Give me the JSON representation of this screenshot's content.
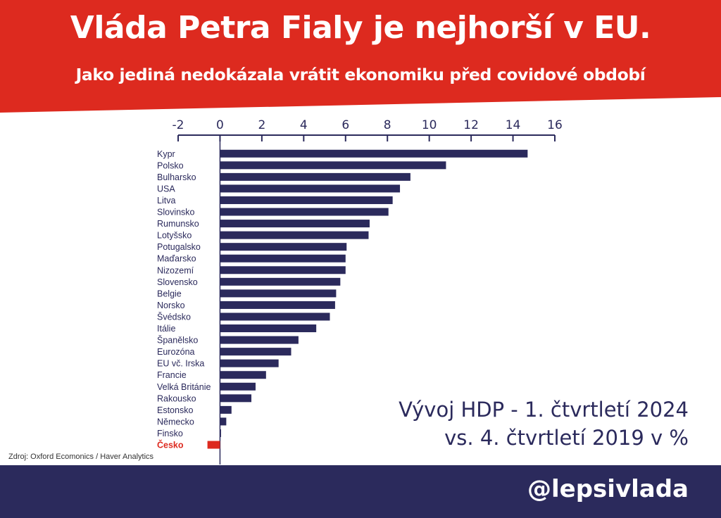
{
  "header": {
    "title": "Vláda Petra Fialy je nejhorší v EU.",
    "subtitle": "Jako jediná nedokázala vrátit ekonomiku před covidové období"
  },
  "caption": {
    "line1": "Vývoj HDP - 1. čtvrtletí 2024",
    "line2": "vs. 4. čtvrtletí 2019 v %"
  },
  "source": "Zdroj: Oxford Ecomonics / Haver Analytics",
  "footer": {
    "handle": "@lepsivlada"
  },
  "colors": {
    "header_bg": "#dd2a1f",
    "bar": "#2b2a5c",
    "highlight": "#dd2a1f",
    "footer_bg": "#2b2a5c"
  },
  "chart_data": {
    "type": "bar",
    "orientation": "horizontal",
    "title": "",
    "xlabel": "",
    "ylabel": "",
    "xlim": [
      -2,
      16
    ],
    "x_ticks": [
      -2,
      0,
      2,
      4,
      6,
      8,
      10,
      12,
      14,
      16
    ],
    "x_axis_position": "top",
    "grid": false,
    "categories": [
      "Kypr",
      "Polsko",
      "Bulharsko",
      "USA",
      "Litva",
      "Slovinsko",
      "Rumunsko",
      "Lotyšsko",
      "Potugalsko",
      "Maďarsko",
      "Nizozemí",
      "Slovensko",
      "Belgie",
      "Norsko",
      "Švédsko",
      "Itálie",
      "Španělsko",
      "Eurozóna",
      "EU vč. Irska",
      "Francie",
      "Velká Británie",
      "Rakousko",
      "Estonsko",
      "Německo",
      "Finsko",
      "Česko"
    ],
    "values": [
      14.7,
      10.8,
      9.1,
      8.6,
      8.25,
      8.05,
      7.15,
      7.1,
      6.05,
      6.0,
      6.0,
      5.75,
      5.55,
      5.5,
      5.25,
      4.6,
      3.75,
      3.4,
      2.8,
      2.2,
      1.7,
      1.5,
      0.55,
      0.3,
      0.05,
      -0.6
    ],
    "highlight": "Česko"
  }
}
